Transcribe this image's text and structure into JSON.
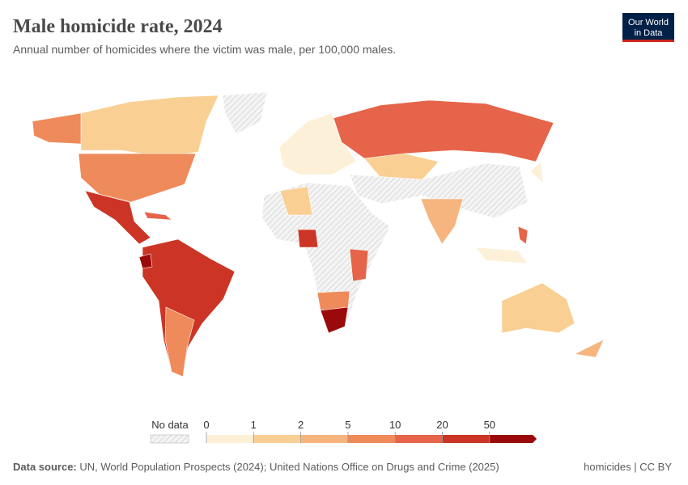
{
  "header": {
    "title": "Male homicide rate, 2024",
    "subtitle": "Annual number of homicides where the victim was male, per 100,000 males.",
    "logo": [
      "Our World",
      "in Data"
    ]
  },
  "legend": {
    "no_data": "No data",
    "bins": [
      0,
      1,
      2,
      5,
      10,
      20,
      50
    ],
    "colors": [
      "#fdf0d8",
      "#f9cf93",
      "#f6b47e",
      "#ef8a5a",
      "#e5644a",
      "#cc3525",
      "#9b0a0a"
    ]
  },
  "footer": {
    "source_label": "Data source:",
    "source": "UN, World Population Prospects (2024); United Nations Office on Drugs and Crime (2025)",
    "license": "homicides | CC BY"
  }
}
